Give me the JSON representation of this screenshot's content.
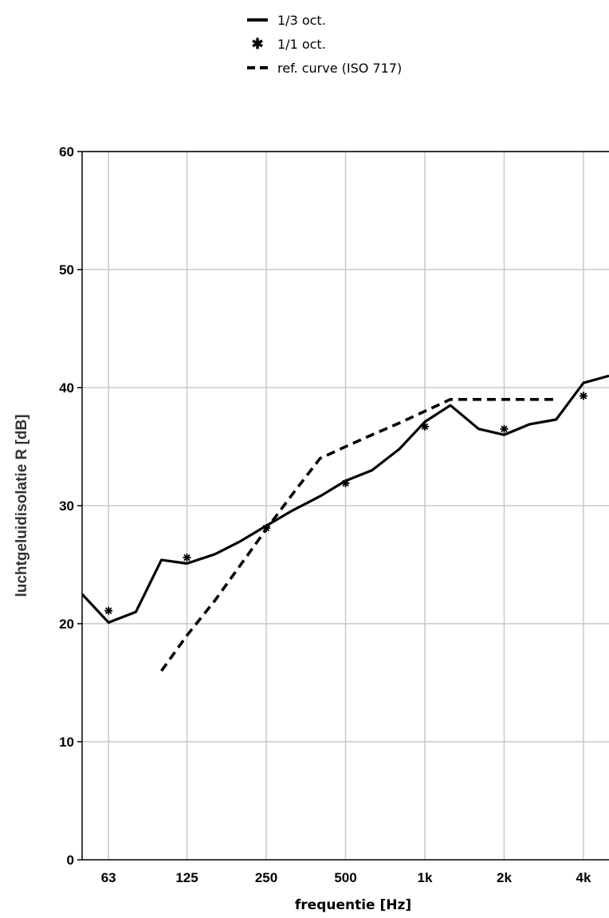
{
  "legend": {
    "items": [
      {
        "label": "1/3 oct.",
        "style": "solid-line"
      },
      {
        "label": "1/1 oct.",
        "style": "asterisk-marker"
      },
      {
        "label": "ref. curve (ISO 717)",
        "style": "dashed-line"
      }
    ]
  },
  "chart_data": {
    "type": "line",
    "xlabel": "frequentie [Hz]",
    "ylabel": "luchtgeluidisolatie R [dB]",
    "x_scale": "log2",
    "xlim": [
      50,
      5000
    ],
    "ylim": [
      0,
      60
    ],
    "grid": true,
    "legend_position": "top-center",
    "x_ticks": [
      63,
      125,
      250,
      500,
      1000,
      2000,
      4000
    ],
    "x_tick_labels": [
      "63",
      "125",
      "250",
      "500",
      "1k",
      "2k",
      "4k"
    ],
    "y_ticks": [
      0,
      10,
      20,
      30,
      40,
      50,
      60
    ],
    "y_tick_labels": [
      "0",
      "10",
      "20",
      "30",
      "40",
      "50",
      "60"
    ],
    "series": [
      {
        "name": "1/3 oct.",
        "style": "solid",
        "x": [
          50,
          63,
          80,
          100,
          125,
          160,
          200,
          250,
          315,
          400,
          500,
          630,
          800,
          1000,
          1250,
          1600,
          2000,
          2500,
          3150,
          4000,
          5000
        ],
        "y": [
          22.5,
          20.1,
          21.0,
          25.4,
          25.1,
          25.9,
          27.0,
          28.3,
          29.6,
          30.8,
          32.1,
          33.0,
          34.8,
          37.1,
          38.5,
          36.5,
          36.0,
          36.9,
          37.3,
          40.4,
          41.0
        ]
      },
      {
        "name": "1/1 oct.",
        "style": "markers",
        "x": [
          63,
          125,
          250,
          500,
          1000,
          2000,
          4000
        ],
        "y": [
          21.1,
          25.6,
          28.1,
          31.9,
          36.7,
          36.5,
          39.3
        ]
      },
      {
        "name": "ref. curve (ISO 717)",
        "style": "dashed",
        "x": [
          100,
          125,
          160,
          200,
          250,
          315,
          400,
          500,
          630,
          800,
          1000,
          1250,
          1600,
          2000,
          2500,
          3150
        ],
        "y": [
          16.0,
          19.0,
          22.0,
          25.0,
          28.0,
          31.0,
          34.0,
          35.0,
          36.0,
          37.0,
          38.0,
          39.0,
          39.0,
          39.0,
          39.0,
          39.0
        ]
      }
    ]
  }
}
